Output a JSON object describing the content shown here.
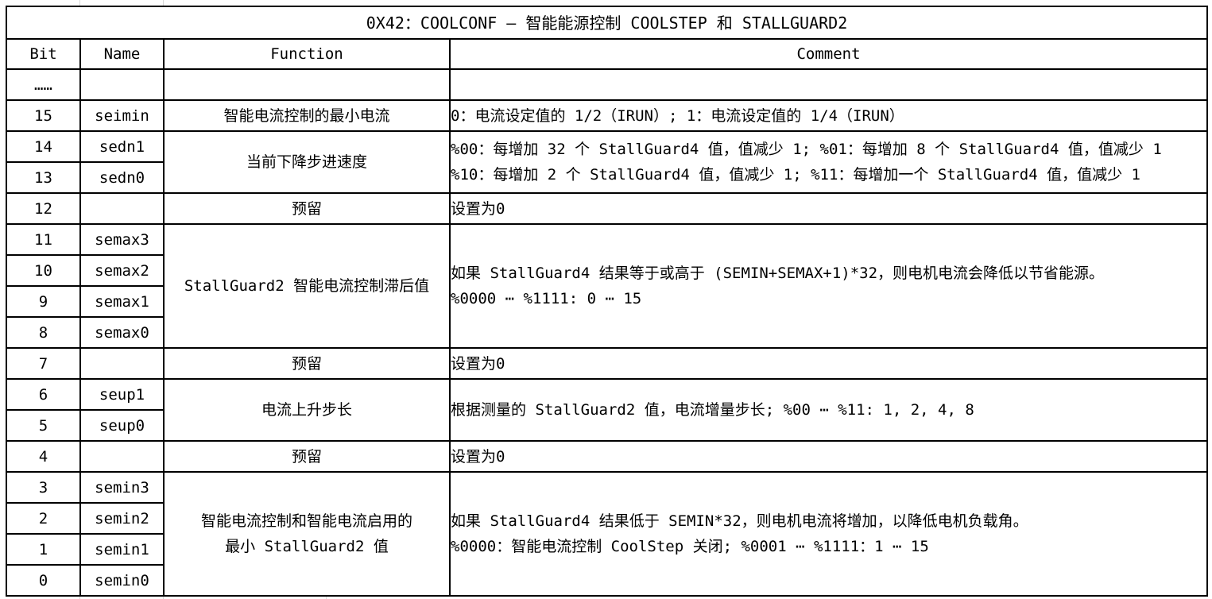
{
  "sheet": {
    "title": "0X42：COOLCONF – 智能能源控制 COOLSTEP 和 STALLGUARD2",
    "headers": [
      "Bit",
      "Name",
      "Function",
      "Comment"
    ],
    "colors": {
      "border": "#000000",
      "text": "#000000",
      "background": "#ffffff",
      "gridline_stub": "#d9d9d9"
    },
    "groups": [
      {
        "rows": [
          {
            "bit": "……",
            "name": ""
          }
        ],
        "function_lines": [
          ""
        ],
        "comment_lines": [
          ""
        ]
      },
      {
        "rows": [
          {
            "bit": "15",
            "name": "seimin"
          }
        ],
        "function_lines": [
          "智能电流控制的最小电流"
        ],
        "comment_lines": [
          "0：电流设定值的 1/2（IRUN）; 1：电流设定值的 1/4（IRUN）"
        ]
      },
      {
        "rows": [
          {
            "bit": "14",
            "name": "sedn1"
          },
          {
            "bit": "13",
            "name": "sedn0"
          }
        ],
        "function_lines": [
          "当前下降步进速度"
        ],
        "comment_lines": [
          "%00：每增加 32 个 StallGuard4 值，值减少 1; %01：每增加 8 个 StallGuard4 值，值减少 1",
          "%10：每增加 2 个 StallGuard4 值，值减少 1; %11：每增加一个 StallGuard4 值，值减少 1"
        ]
      },
      {
        "rows": [
          {
            "bit": "12",
            "name": ""
          }
        ],
        "function_lines": [
          "预留"
        ],
        "comment_lines": [
          "设置为0"
        ]
      },
      {
        "rows": [
          {
            "bit": "11",
            "name": "semax3"
          },
          {
            "bit": "10",
            "name": "semax2"
          },
          {
            "bit": "9",
            "name": "semax1"
          },
          {
            "bit": "8",
            "name": "semax0"
          }
        ],
        "function_lines": [
          "StallGuard2 智能电流控制滞后值"
        ],
        "comment_lines": [
          "如果 StallGuard4 结果等于或高于 (SEMIN+SEMAX+1)*32，则电机电流会降低以节省能源。",
          "%0000 ⋯ %1111: 0 ⋯ 15"
        ]
      },
      {
        "rows": [
          {
            "bit": "7",
            "name": ""
          }
        ],
        "function_lines": [
          "预留"
        ],
        "comment_lines": [
          "设置为0"
        ]
      },
      {
        "rows": [
          {
            "bit": "6",
            "name": "seup1"
          },
          {
            "bit": "5",
            "name": "seup0"
          }
        ],
        "function_lines": [
          "电流上升步长"
        ],
        "comment_lines": [
          "根据测量的 StallGuard2 值，电流增量步长; %00 ⋯ %11: 1, 2, 4, 8"
        ]
      },
      {
        "rows": [
          {
            "bit": "4",
            "name": ""
          }
        ],
        "function_lines": [
          "预留"
        ],
        "comment_lines": [
          "设置为0"
        ]
      },
      {
        "rows": [
          {
            "bit": "3",
            "name": "semin3"
          },
          {
            "bit": "2",
            "name": "semin2"
          },
          {
            "bit": "1",
            "name": "semin1"
          },
          {
            "bit": "0",
            "name": "semin0"
          }
        ],
        "function_lines": [
          "智能电流控制和智能电流启用的",
          "最小 StallGuard2 值"
        ],
        "comment_lines": [
          "如果 StallGuard4 结果低于 SEMIN*32，则电机电流将增加，以降低电机负载角。",
          "%0000：智能电流控制 CoolStep 关闭; %0001 ⋯ %1111：1 ⋯ 15"
        ]
      }
    ]
  }
}
